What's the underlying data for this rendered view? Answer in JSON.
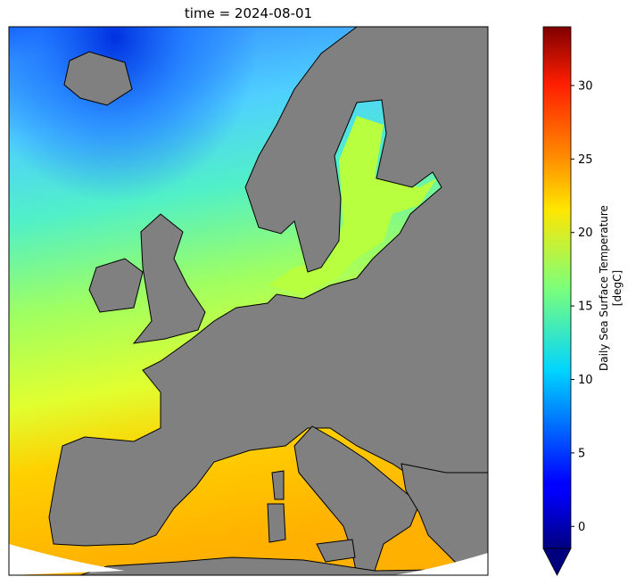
{
  "title": "time = 2024-08-01",
  "colorbar": {
    "label_line1": "Daily Sea Surface Temperature",
    "label_line2": "[degC]",
    "range": [
      -1.5,
      34
    ],
    "ticks": [
      {
        "value": 0,
        "label": "0"
      },
      {
        "value": 5,
        "label": "5"
      },
      {
        "value": 10,
        "label": "10"
      },
      {
        "value": 15,
        "label": "15"
      },
      {
        "value": 20,
        "label": "20"
      },
      {
        "value": 25,
        "label": "25"
      },
      {
        "value": 30,
        "label": "30"
      }
    ],
    "colormap": "jet",
    "extend": "min"
  },
  "land_color": "#808080",
  "coastline_color": "#000000"
}
